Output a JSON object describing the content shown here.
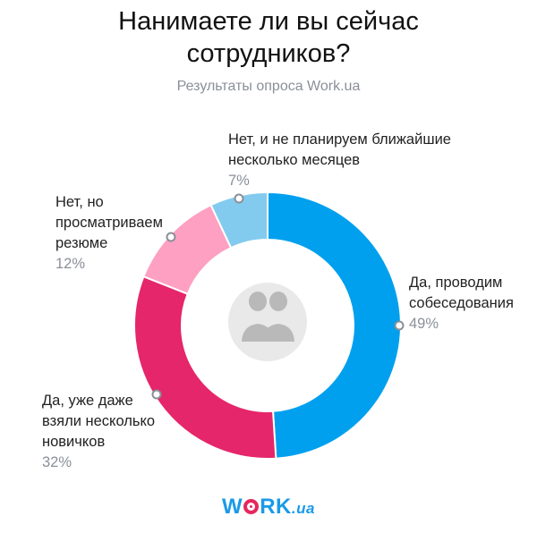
{
  "header": {
    "title_line1": "Нанимаете ли вы сейчас",
    "title_line2": "сотрудников?",
    "subtitle": "Результаты опроса Work.ua"
  },
  "chart_data": {
    "type": "pie",
    "donut": true,
    "title": "Нанимаете ли вы сейчас сотрудников?",
    "subtitle": "Результаты опроса Work.ua",
    "center_icon": "two-people-icon",
    "slices": [
      {
        "label_lines": [
          "Да, проводим",
          "собеседования"
        ],
        "value": 49,
        "value_label": "49%",
        "color": "#01a0ee"
      },
      {
        "label_lines": [
          "Да, уже даже",
          "взяли несколько",
          "новичков"
        ],
        "value": 32,
        "value_label": "32%",
        "color": "#e5266a"
      },
      {
        "label_lines": [
          "Нет, но",
          "просматриваем",
          "резюме"
        ],
        "value": 12,
        "value_label": "12%",
        "color": "#fda0c2"
      },
      {
        "label_lines": [
          "Нет, и не планируем ближайшие",
          "несколько месяцев"
        ],
        "value": 7,
        "value_label": "7%",
        "color": "#83cbee"
      }
    ]
  },
  "logo": {
    "part1": "W",
    "part2": "RK",
    "part3": ".ua"
  }
}
